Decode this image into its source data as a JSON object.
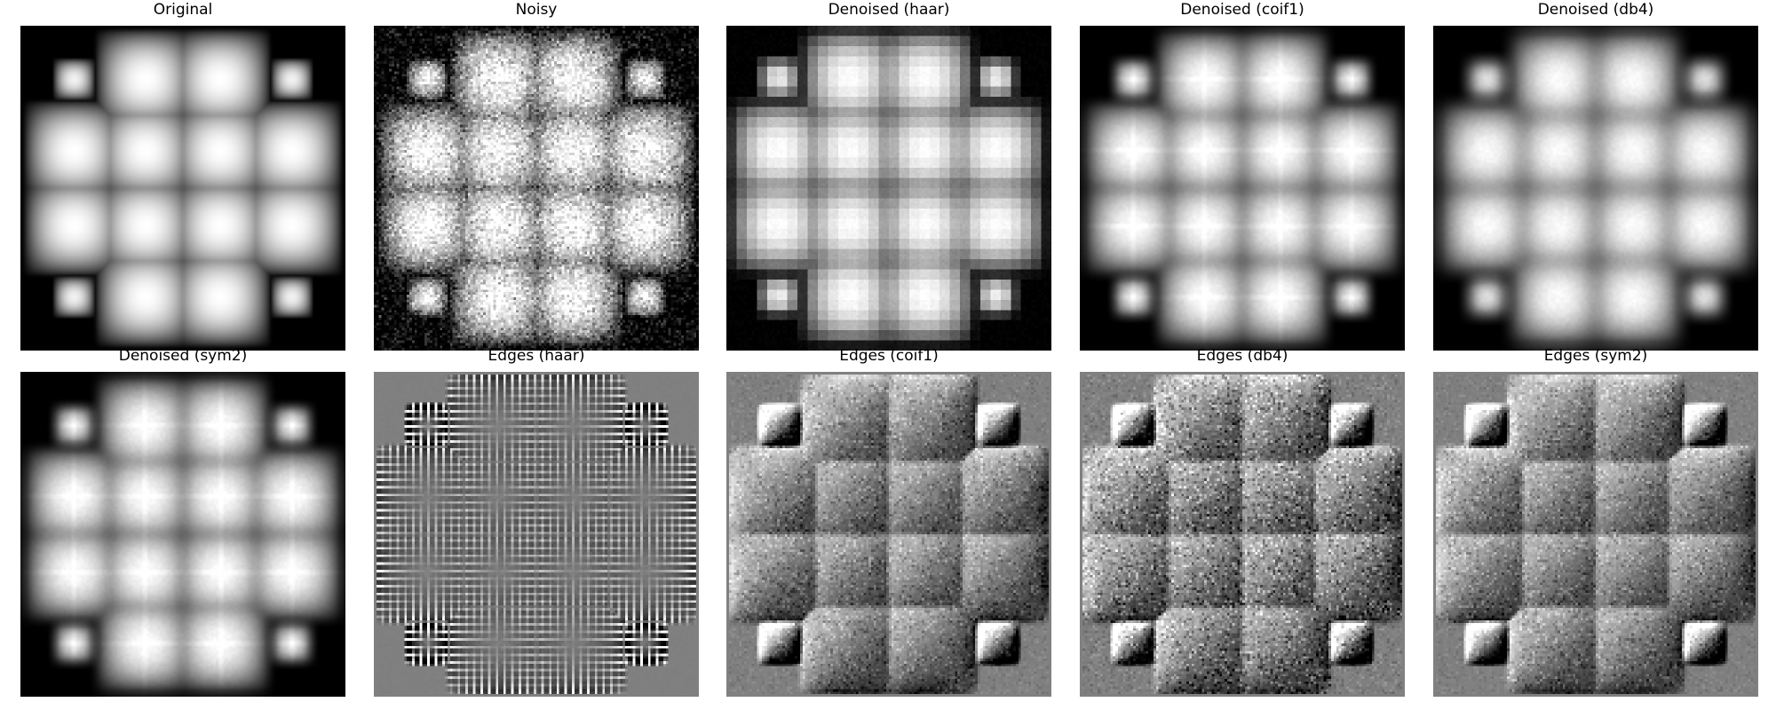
{
  "figure": {
    "panels": [
      {
        "title": "Original",
        "kind": "original",
        "wavelet": ""
      },
      {
        "title": "Noisy",
        "kind": "noisy",
        "wavelet": ""
      },
      {
        "title": "Denoised (haar)",
        "kind": "denoised",
        "wavelet": "haar"
      },
      {
        "title": "Denoised (coif1)",
        "kind": "denoised",
        "wavelet": "coif1"
      },
      {
        "title": "Denoised (db4)",
        "kind": "denoised",
        "wavelet": "db4"
      },
      {
        "title": "Denoised (sym2)",
        "kind": "denoised",
        "wavelet": "sym2"
      },
      {
        "title": "Edges (haar)",
        "kind": "edges",
        "wavelet": "haar"
      },
      {
        "title": "Edges (coif1)",
        "kind": "edges",
        "wavelet": "coif1"
      },
      {
        "title": "Edges (db4)",
        "kind": "edges",
        "wavelet": "db4"
      },
      {
        "title": "Edges (sym2)",
        "kind": "edges",
        "wavelet": "sym2"
      }
    ],
    "colormap": "gray"
  }
}
